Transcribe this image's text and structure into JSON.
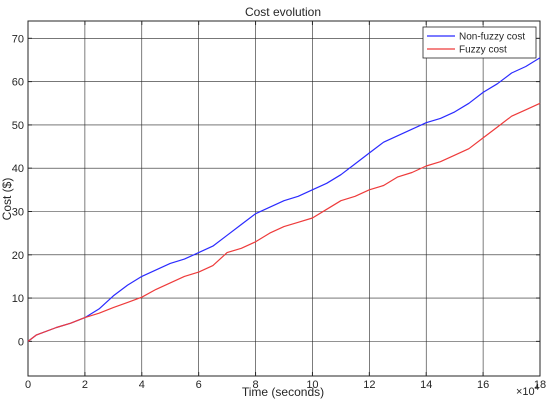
{
  "chart_data": {
    "type": "line",
    "title": "Cost evolution",
    "xlabel": "Time (seconds)",
    "ylabel": "Cost ($)",
    "x_multiplier": "×10",
    "x_multiplier_exp": "4",
    "xlim": [
      0,
      18
    ],
    "ylim": [
      -8,
      74
    ],
    "xticks": [
      0,
      2,
      4,
      6,
      8,
      10,
      12,
      14,
      16,
      18
    ],
    "xtick_labels": [
      "0",
      "2",
      "4",
      "6",
      "8",
      "10",
      "12",
      "14",
      "16",
      "18"
    ],
    "yticks": [
      0,
      10,
      20,
      30,
      40,
      50,
      60,
      70
    ],
    "ytick_labels": [
      "0",
      "10",
      "20",
      "30",
      "40",
      "50",
      "60",
      "70"
    ],
    "grid": true,
    "legend_position": "top-right",
    "series": [
      {
        "name": "Non-fuzzy cost",
        "color": "#2b2bff",
        "x": [
          0,
          0.3,
          1,
          1.5,
          2,
          2.5,
          3,
          3.5,
          4,
          4.5,
          5,
          5.5,
          6,
          6.5,
          7,
          7.5,
          8,
          8.5,
          9,
          9.5,
          10,
          10.5,
          11,
          11.5,
          12,
          12.5,
          13,
          13.5,
          14,
          14.5,
          15,
          15.5,
          16,
          16.5,
          17,
          17.5,
          18
        ],
        "y": [
          0,
          1.5,
          3.2,
          4.2,
          5.5,
          7.5,
          10.5,
          13,
          15,
          16.5,
          18,
          19,
          20.5,
          22,
          24.5,
          27,
          29.5,
          31,
          32.5,
          33.5,
          35,
          36.5,
          38.5,
          41,
          43.5,
          46,
          47.5,
          49,
          50.5,
          51.5,
          53,
          55,
          57.5,
          59.5,
          62,
          63.5,
          65.5
        ]
      },
      {
        "name": "Fuzzy cost",
        "color": "#ee3b3b",
        "x": [
          0,
          0.3,
          1,
          1.5,
          2,
          2.5,
          3,
          3.5,
          4,
          4.5,
          5,
          5.5,
          6,
          6.5,
          7,
          7.5,
          8,
          8.5,
          9,
          9.5,
          10,
          10.5,
          11,
          11.5,
          12,
          12.5,
          13,
          13.5,
          14,
          14.5,
          15,
          15.5,
          16,
          16.5,
          17,
          17.5,
          18
        ],
        "y": [
          0,
          1.5,
          3.2,
          4.2,
          5.5,
          6.5,
          7.8,
          9,
          10.2,
          12,
          13.5,
          15,
          16,
          17.5,
          20.5,
          21.5,
          23,
          25,
          26.5,
          27.5,
          28.5,
          30.5,
          32.5,
          33.5,
          35,
          36,
          38,
          39,
          40.5,
          41.5,
          43,
          44.5,
          47,
          49.5,
          52,
          53.5,
          55
        ]
      }
    ]
  }
}
